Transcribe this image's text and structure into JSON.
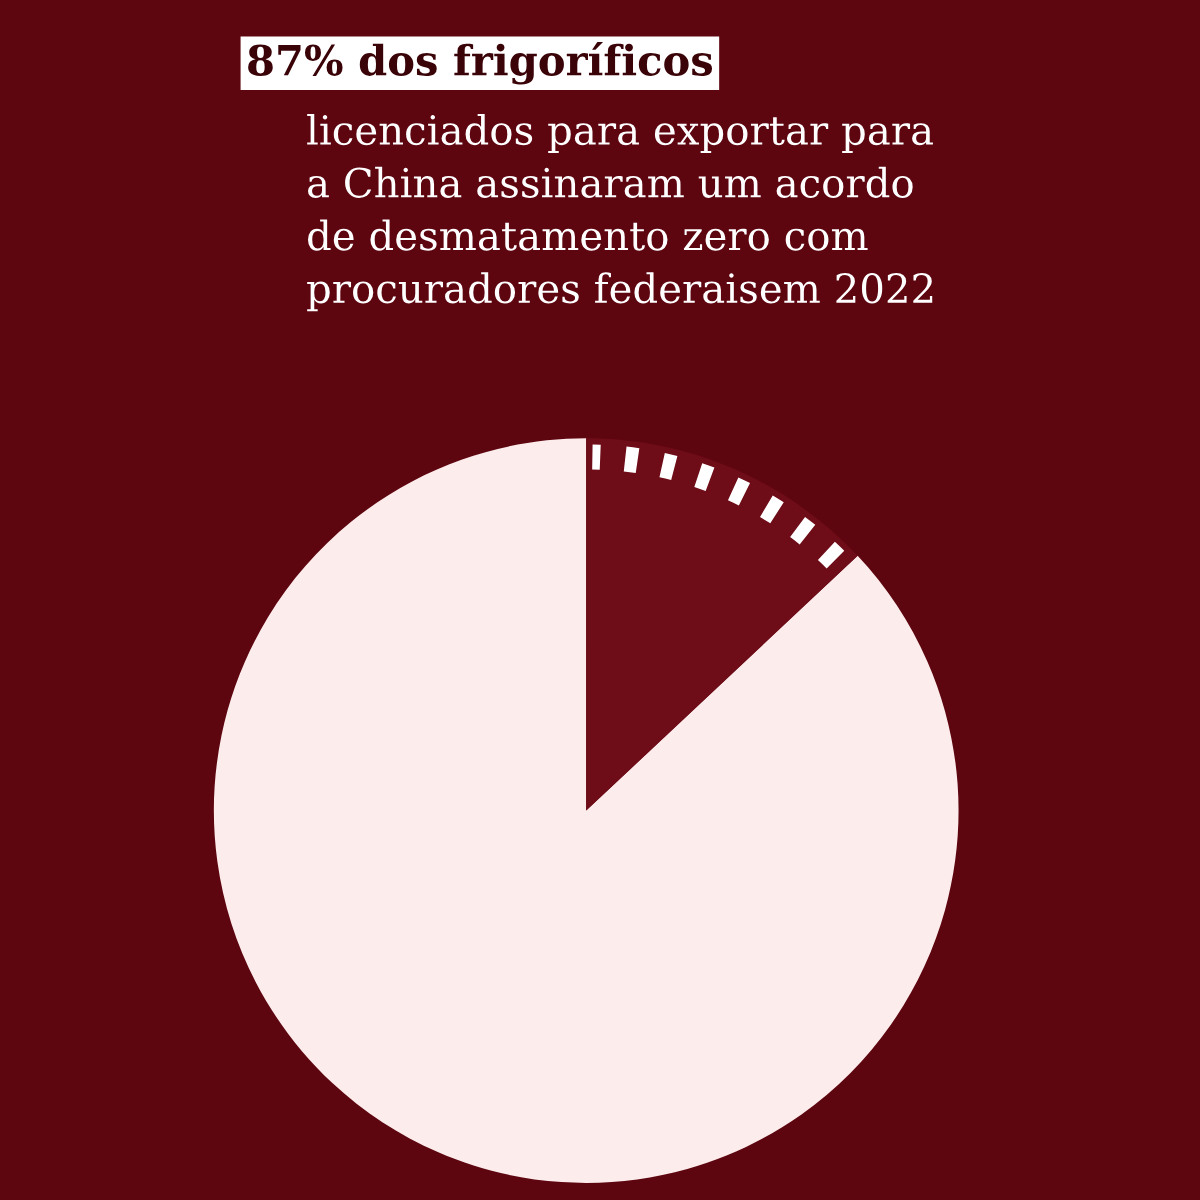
{
  "chart_data": {
    "type": "pie",
    "title": "87% dos frigoríficos",
    "subtitle": "licenciados para exportar para\na China assinaram um acordo\nde desmatamento zero com\nprocuradores federaisem 2022",
    "categories": [
      null,
      null
    ],
    "values": [
      87,
      13
    ],
    "colors": [
      "#fcecec",
      "#6e0c18"
    ]
  }
}
